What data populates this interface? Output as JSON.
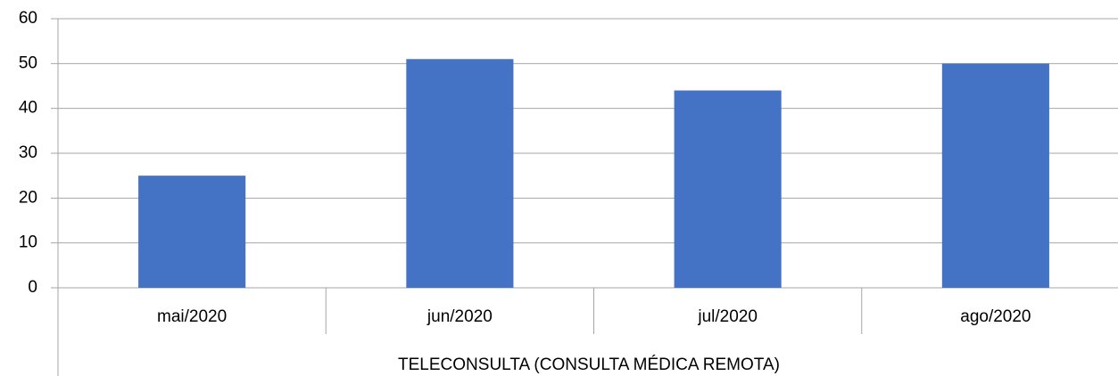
{
  "chart_data": {
    "type": "bar",
    "x_label": "TELECONSULTA (CONSULTA MÉDICA REMOTA)",
    "categories": [
      "mai/2020",
      "jun/2020",
      "jul/2020",
      "ago/2020"
    ],
    "values": [
      25,
      51,
      44,
      50
    ],
    "color": "#4472c4",
    "ylim": [
      0,
      60
    ],
    "yticks": [
      0,
      10,
      20,
      30,
      40,
      50,
      60
    ],
    "grid": true
  }
}
